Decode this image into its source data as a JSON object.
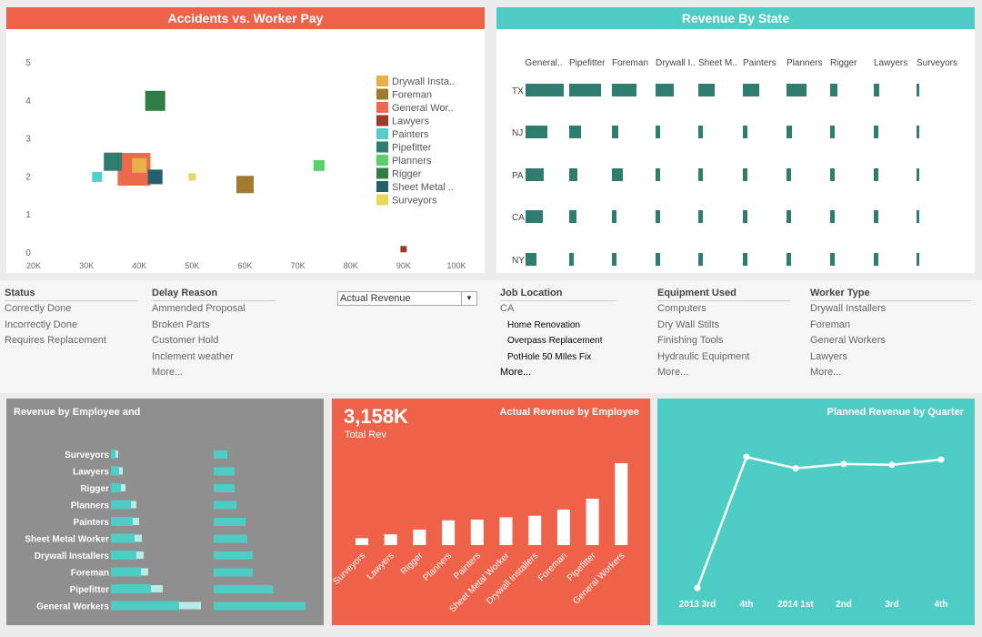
{
  "colors": {
    "coral": "#ee6249",
    "teal": "#4ecdc4",
    "darkteal": "#2e7d6f",
    "grey": "#8f8f8f",
    "dotcolors": {
      "Drywall Installers": "#e8b04b",
      "Foreman": "#a07a2e",
      "General Workers": "#ec6a4c",
      "Lawyers": "#9c3a28",
      "Painters": "#52cfc7",
      "Pipefitter": "#2e7d6f",
      "Planners": "#5ccf6a",
      "Rigger": "#2e7d44",
      "Sheet Metal Worker": "#245f6b",
      "Surveyors": "#e8d95a"
    }
  },
  "accidents": {
    "title": "Accidents vs. Worker Pay",
    "chart_data": {
      "type": "scatter",
      "title": "Accidents vs. Worker Pay",
      "xlim": [
        20000,
        100000
      ],
      "ylim": [
        0,
        5
      ],
      "xticks": [
        "20K",
        "30K",
        "40K",
        "50K",
        "60K",
        "70K",
        "80K",
        "90K",
        "100K"
      ],
      "xtick_values": [
        20000,
        30000,
        40000,
        50000,
        60000,
        70000,
        80000,
        90000,
        100000
      ],
      "yticks": [
        "0",
        "1",
        "2",
        "3",
        "4",
        "5"
      ],
      "ytick_values": [
        0,
        1,
        2,
        3,
        4,
        5
      ],
      "legend": [
        "Drywall Insta..",
        "Foreman",
        "General Wor..",
        "Lawyers",
        "Painters",
        "Pipefitter",
        "Planners",
        "Rigger",
        "Sheet Metal ..",
        "Surveyors"
      ],
      "points": [
        {
          "name": "General Workers",
          "x": 39000,
          "y": 2.2,
          "size": 36
        },
        {
          "name": "Drywall Installers",
          "x": 40000,
          "y": 2.3,
          "size": 16
        },
        {
          "name": "Pipefitter",
          "x": 35000,
          "y": 2.4,
          "size": 20
        },
        {
          "name": "Painters",
          "x": 32000,
          "y": 2.0,
          "size": 11
        },
        {
          "name": "Sheet Metal Worker",
          "x": 43000,
          "y": 2.0,
          "size": 16
        },
        {
          "name": "Rigger",
          "x": 43000,
          "y": 4.0,
          "size": 22
        },
        {
          "name": "Surveyors",
          "x": 50000,
          "y": 2.0,
          "size": 8
        },
        {
          "name": "Foreman",
          "x": 60000,
          "y": 1.8,
          "size": 19
        },
        {
          "name": "Planners",
          "x": 74000,
          "y": 2.3,
          "size": 12
        },
        {
          "name": "Lawyers",
          "x": 90000,
          "y": 0.1,
          "size": 7
        }
      ]
    }
  },
  "revenue_state": {
    "title": "Revenue By State",
    "chart_data": {
      "type": "bar",
      "title": "Revenue By State",
      "columns": [
        "General..",
        "Pipefitter",
        "Foreman",
        "Drywall I..",
        "Sheet M..",
        "Painters",
        "Planners",
        "Rigger",
        "Lawyers",
        "Surveyors"
      ],
      "rows": [
        "TX",
        "NJ",
        "PA",
        "CA",
        "NY"
      ],
      "values": [
        [
          42,
          35,
          27,
          20,
          18,
          18,
          22,
          8,
          6,
          3
        ],
        [
          24,
          13,
          7,
          5,
          5,
          5,
          6,
          5,
          5,
          3
        ],
        [
          20,
          9,
          12,
          5,
          5,
          5,
          5,
          5,
          5,
          3
        ],
        [
          19,
          8,
          5,
          5,
          5,
          5,
          5,
          5,
          5,
          3
        ],
        [
          12,
          5,
          5,
          5,
          5,
          5,
          5,
          5,
          5,
          3
        ]
      ]
    }
  },
  "filters": {
    "status": {
      "title": "Status",
      "items": [
        "Correctly Done",
        "Incorrectly Done",
        "Requires Replacement"
      ]
    },
    "delay": {
      "title": "Delay Reason",
      "items": [
        "Ammended Proposal",
        "Broken Parts",
        "Customer Hold",
        "Inclement weather"
      ],
      "more": "More..."
    },
    "dropdown": {
      "value": "Actual Revenue",
      "arrow": "▼"
    },
    "job": {
      "title": "Job Location",
      "value": "CA",
      "items": [
        "Home Renovation",
        "Overpass Replacement",
        "PotHole 50 MIles Fix"
      ],
      "more": "More..."
    },
    "equipment": {
      "title": "Equipment Used",
      "items": [
        "Computers",
        "Dry Wall Stilts",
        "Finishing Tools",
        "Hydraulic Equipment"
      ],
      "more": "More..."
    },
    "worker": {
      "title": "Worker Type",
      "items": [
        "Drywall Installers",
        "Foreman",
        "General Workers",
        "Lawyers"
      ],
      "more": "More..."
    }
  },
  "rev_employee": {
    "title": "Revenue by Employee and",
    "chart_data": {
      "type": "bar",
      "title": "Revenue by Employee and",
      "categories": [
        "Surveyors",
        "Lawyers",
        "Rigger",
        "Planners",
        "Painters",
        "Sheet Metal Worker",
        "Drywall Installers",
        "Foreman",
        "Pipefitter",
        "General Workers"
      ],
      "series": [
        {
          "name": "left_main",
          "values": [
            5,
            9,
            11,
            22,
            24,
            26,
            28,
            33,
            44,
            75
          ]
        },
        {
          "name": "left_light",
          "values": [
            3,
            4,
            5,
            6,
            7,
            8,
            8,
            8,
            13,
            24
          ]
        },
        {
          "name": "right",
          "values": [
            15,
            23,
            23,
            25,
            35,
            37,
            43,
            43,
            65,
            101
          ]
        }
      ]
    }
  },
  "actual_rev": {
    "title": "Actual Revenue by Employee",
    "kpi": "3,158K",
    "kpi_label": "Total Rev",
    "chart_data": {
      "type": "bar",
      "title": "Actual Revenue by Employee",
      "categories": [
        "Surveyors",
        "Lawyers",
        "Rigger",
        "Planners",
        "Painters",
        "Sheet Metal Worker",
        "Drywall Installers",
        "Foreman",
        "Pipefitter",
        "General Workers"
      ],
      "values": [
        45,
        70,
        100,
        160,
        165,
        180,
        190,
        230,
        300,
        530
      ]
    }
  },
  "planned_rev": {
    "title": "Planned Revenue by Quarter",
    "chart_data": {
      "type": "line",
      "title": "Planned Revenue by Quarter",
      "categories": [
        "2013 3rd",
        "4th",
        "2014 1st",
        "2nd",
        "3rd",
        "4th"
      ],
      "values": [
        20,
        770,
        705,
        730,
        725,
        755
      ],
      "ylim": [
        0,
        1000
      ]
    }
  }
}
